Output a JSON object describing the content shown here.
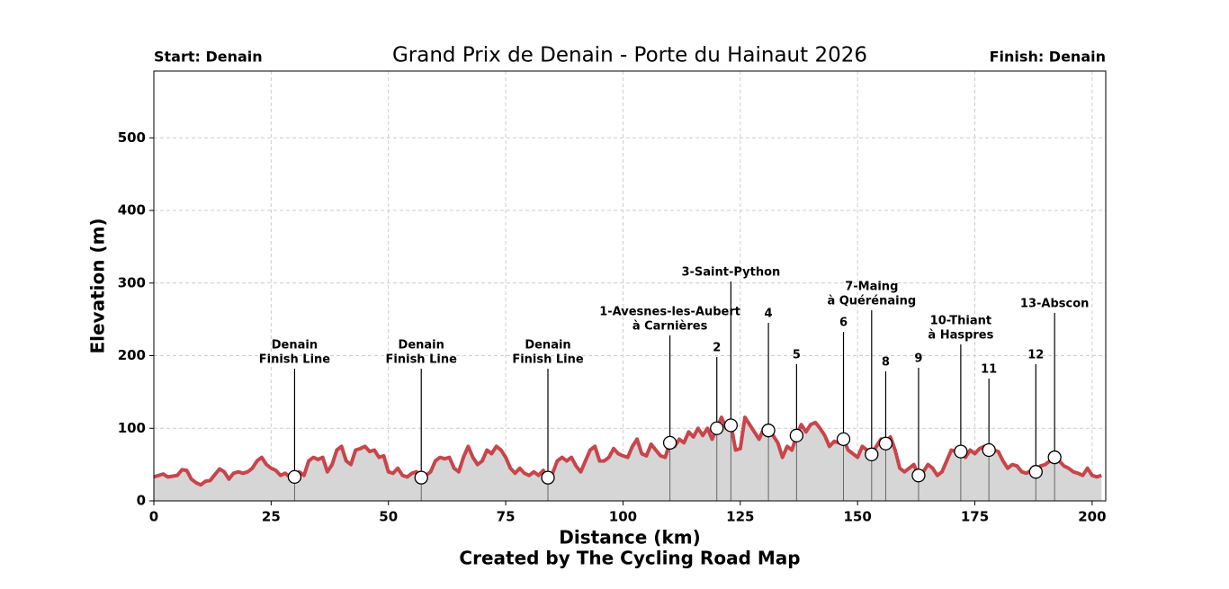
{
  "chart_data": {
    "type": "area-line",
    "title": "Grand Prix de Denain - Porte du Hainaut 2026",
    "start_label": "Start: Denain",
    "finish_label": "Finish: Denain",
    "xlabel": "Distance (km)",
    "ylabel": "Elevation (m)",
    "footer": "Created by The Cycling Road Map",
    "xlim": [
      0,
      202.9
    ],
    "ylim": [
      0,
      592
    ],
    "xticks": [
      0,
      25,
      50,
      75,
      100,
      125,
      150,
      175,
      200
    ],
    "yticks": [
      0,
      100,
      200,
      300,
      400,
      500
    ],
    "grid": true,
    "x": [
      0,
      2,
      3,
      5,
      6,
      7,
      8,
      9,
      10,
      11,
      12,
      13,
      14,
      15,
      16,
      17,
      18,
      19,
      20,
      21,
      22,
      23,
      24,
      25,
      26,
      27,
      28,
      29,
      30,
      31,
      32,
      33,
      34,
      35,
      36,
      37,
      38,
      39,
      40,
      41,
      42,
      43,
      44,
      45,
      46,
      47,
      48,
      49,
      50,
      51,
      52,
      53,
      54,
      55,
      56,
      57,
      58,
      59,
      60,
      61,
      62,
      63,
      64,
      65,
      66,
      67,
      68,
      69,
      70,
      71,
      72,
      73,
      74,
      75,
      76,
      77,
      78,
      79,
      80,
      81,
      82,
      83,
      84,
      85,
      86,
      87,
      88,
      89,
      90,
      91,
      92,
      93,
      94,
      95,
      96,
      97,
      98,
      99,
      100,
      101,
      102,
      103,
      104,
      105,
      106,
      107,
      108,
      109,
      110,
      111,
      112,
      113,
      114,
      115,
      116,
      117,
      118,
      119,
      120,
      121,
      122,
      123,
      124,
      125,
      126,
      127,
      128,
      129,
      130,
      131,
      132,
      133,
      134,
      135,
      136,
      137,
      138,
      139,
      140,
      141,
      142,
      143,
      144,
      145,
      146,
      147,
      148,
      149,
      150,
      151,
      152,
      153,
      154,
      155,
      156,
      157,
      158,
      159,
      160,
      161,
      162,
      163,
      164,
      165,
      166,
      167,
      168,
      169,
      170,
      171,
      172,
      173,
      174,
      175,
      176,
      177,
      178,
      179,
      180,
      181,
      182,
      183,
      184,
      185,
      186,
      187,
      188,
      189,
      190,
      191,
      192,
      193,
      194,
      195,
      196,
      197,
      198,
      199,
      200,
      201,
      202
    ],
    "series": [
      {
        "name": "Elevation",
        "color": "#c8454b",
        "fill": "#d6d6d6",
        "values": [
          33,
          37,
          33,
          35,
          43,
          42,
          30,
          25,
          22,
          27,
          28,
          36,
          44,
          40,
          30,
          38,
          40,
          38,
          40,
          45,
          55,
          60,
          50,
          45,
          42,
          35,
          38,
          33,
          33,
          40,
          35,
          55,
          60,
          57,
          60,
          40,
          50,
          70,
          75,
          55,
          50,
          70,
          72,
          75,
          68,
          70,
          60,
          62,
          40,
          38,
          45,
          35,
          33,
          38,
          40,
          32,
          35,
          40,
          55,
          60,
          58,
          60,
          45,
          40,
          60,
          75,
          60,
          50,
          55,
          70,
          65,
          75,
          70,
          60,
          45,
          38,
          45,
          38,
          35,
          40,
          35,
          42,
          33,
          38,
          55,
          60,
          55,
          60,
          48,
          40,
          55,
          70,
          75,
          55,
          55,
          60,
          72,
          65,
          62,
          60,
          75,
          85,
          65,
          62,
          78,
          70,
          62,
          60,
          80,
          75,
          85,
          80,
          95,
          88,
          100,
          90,
          100,
          85,
          100,
          115,
          100,
          105,
          70,
          72,
          115,
          105,
          95,
          85,
          100,
          97,
          90,
          80,
          60,
          75,
          70,
          90,
          105,
          95,
          105,
          108,
          100,
          90,
          75,
          82,
          80,
          85,
          70,
          65,
          60,
          75,
          70,
          65,
          75,
          85,
          80,
          88,
          70,
          45,
          40,
          45,
          50,
          35,
          40,
          50,
          45,
          35,
          40,
          55,
          70,
          68,
          68,
          60,
          70,
          65,
          72,
          75,
          70,
          70,
          68,
          55,
          45,
          50,
          48,
          40,
          38,
          42,
          40,
          48,
          50,
          55,
          60,
          55,
          48,
          45,
          40,
          38,
          35,
          45,
          35,
          33,
          35
        ]
      }
    ],
    "markers": [
      {
        "km": 30,
        "elevation": 33,
        "label": [
          "Denain",
          "Finish Line"
        ]
      },
      {
        "km": 57,
        "elevation": 32,
        "label": [
          "Denain",
          "Finish Line"
        ]
      },
      {
        "km": 84,
        "elevation": 32,
        "label": [
          "Denain",
          "Finish Line"
        ]
      },
      {
        "km": 110,
        "elevation": 80,
        "label": [
          "1-Avesnes-les-Aubert",
          "à Carnières"
        ]
      },
      {
        "km": 120,
        "elevation": 100,
        "label": [
          "2"
        ]
      },
      {
        "km": 123,
        "elevation": 104,
        "label": [
          "3-Saint-Python"
        ]
      },
      {
        "km": 131,
        "elevation": 97,
        "label": [
          "4"
        ]
      },
      {
        "km": 137,
        "elevation": 90,
        "label": [
          "5"
        ]
      },
      {
        "km": 147,
        "elevation": 85,
        "label": [
          "6"
        ]
      },
      {
        "km": 153,
        "elevation": 64,
        "label": [
          "7-Maing",
          "à Quérénaing"
        ]
      },
      {
        "km": 156,
        "elevation": 79,
        "label": [
          "8"
        ]
      },
      {
        "km": 163,
        "elevation": 35,
        "label": [
          "9"
        ]
      },
      {
        "km": 172,
        "elevation": 68,
        "label": [
          "10-Thiant",
          "à Haspres"
        ]
      },
      {
        "km": 178,
        "elevation": 70,
        "label": [
          "11"
        ]
      },
      {
        "km": 188,
        "elevation": 40,
        "label": [
          "12"
        ]
      },
      {
        "km": 192,
        "elevation": 60,
        "label": [
          "13-Abscon"
        ]
      }
    ]
  }
}
